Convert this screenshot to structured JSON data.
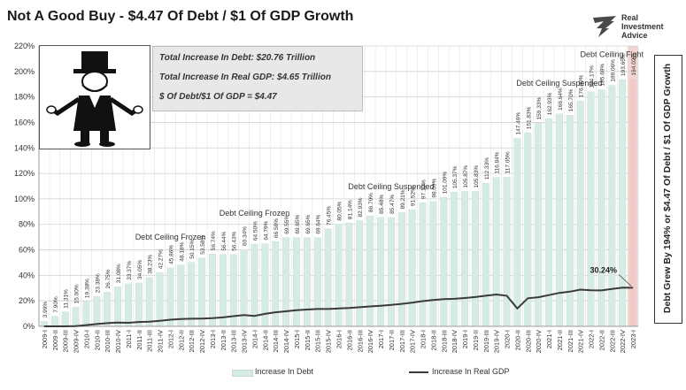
{
  "title": "Not A Good Buy - $4.47 Of Debt / $1 Of GDP Growth",
  "logo": {
    "line1": "Real",
    "line2": "Investment",
    "line3": "Advice"
  },
  "side_label": "Debt Grew By 194% or $4.47 Of Debt / $1 Of GDP Growth",
  "infobox": {
    "line1": "Total Increase In Debt:  $20.76 Trillion",
    "line2": "Total Increase In Real GDP:  $4.65 Trillion",
    "line3": "$ Of Debt/$1 Of GDP = $4.47"
  },
  "colors": {
    "bar": "#d6ebe4",
    "bar_last": "#f4c9c6",
    "line": "#3a3a3a",
    "grid": "#d0d0d0",
    "shade": "#f4d4d2"
  },
  "chart_data": {
    "type": "bar",
    "ylim": [
      0,
      220
    ],
    "yticks": [
      "0%",
      "20%",
      "40%",
      "60%",
      "80%",
      "100%",
      "120%",
      "140%",
      "160%",
      "180%",
      "200%",
      "220%"
    ],
    "categories": [
      "2009-I",
      "2009-II",
      "2009-III",
      "2009-IV",
      "2010-I",
      "2010-II",
      "2010-III",
      "2010-IV",
      "2011-I",
      "2011-II",
      "2011-III",
      "2011-IV",
      "2012-I",
      "2012-II",
      "2012-III",
      "2012-IV",
      "2013-I",
      "2013-II",
      "2013-III",
      "2013-IV",
      "2014-I",
      "2014-II",
      "2014-III",
      "2014-IV",
      "2015-I",
      "2015-II",
      "2015-III",
      "2015-IV",
      "2016-I",
      "2016-II",
      "2016-III",
      "2016-IV",
      "2017-I",
      "2017-II",
      "2017-III",
      "2017-IV",
      "2018-I",
      "2018-II",
      "2018-III",
      "2018-IV",
      "2019-I",
      "2019-II",
      "2019-III",
      "2019-IV",
      "2020-I",
      "2020-II",
      "2020-III",
      "2020-IV",
      "2021-I",
      "2021-II",
      "2021-III",
      "2021-IV",
      "2022-I",
      "2022-II",
      "2022-III",
      "2022-IV",
      "2023-I"
    ],
    "series": [
      {
        "name": "Increase In Debt",
        "type": "bar",
        "values": [
          3.99,
          7.9,
          11.31,
          15.0,
          19.38,
          23.38,
          26.75,
          31.08,
          33.37,
          34.05,
          38.23,
          42.27,
          45.86,
          48.18,
          50.15,
          53.58,
          56.74,
          56.44,
          56.43,
          60.34,
          64.5,
          64.79,
          66.58,
          69.55,
          69.65,
          69.65,
          69.64,
          76.45,
          80.05,
          81.14,
          82.93,
          86.7,
          85.48,
          85.47,
          89.21,
          91.52,
          97.1,
          98.09,
          101.09,
          105.37,
          105.87,
          105.83,
          112.33,
          116.84,
          117.05,
          147.46,
          151.83,
          159.33,
          162.93,
          166.64,
          165.7,
          176.8,
          184.17,
          185.69,
          189.06,
          193.65,
          194.02
        ],
        "labels": [
          "3.99%",
          "7.90%",
          "11.31%",
          "15.00%",
          "19.38%",
          "23.38%",
          "26.75%",
          "31.08%",
          "33.37%",
          "34.05%",
          "38.23%",
          "42.27%",
          "45.86%",
          "48.18%",
          "50.15%",
          "53.58%",
          "56.74%",
          "56.44%",
          "56.43%",
          "60.34%",
          "64.50%",
          "64.79%",
          "66.58%",
          "69.55%",
          "69.65%",
          "69.65%",
          "69.64%",
          "76.45%",
          "80.05%",
          "81.14%",
          "82.93%",
          "86.70%",
          "85.48%",
          "85.47%",
          "89.21%",
          "91.52%",
          "97.10%",
          "98.09%",
          "101.09%",
          "105.37%",
          "105.87%",
          "105.83%",
          "112.33%",
          "116.84%",
          "117.05%",
          "147.46%",
          "151.83%",
          "159.33%",
          "162.93%",
          "166.64%",
          "165.70%",
          "176.80%",
          "184.17%",
          "185.69%",
          "189.06%",
          "193.65%",
          "194.02%"
        ]
      },
      {
        "name": "Increase In Real GDP",
        "type": "line",
        "values": [
          0,
          0,
          0,
          0.2,
          1.0,
          1.8,
          2.5,
          3.0,
          2.8,
          3.4,
          3.6,
          4.4,
          5.2,
          5.7,
          6.0,
          6.1,
          6.4,
          7.0,
          8.0,
          8.8,
          8.2,
          9.8,
          11.0,
          11.8,
          12.6,
          13.2,
          13.6,
          13.6,
          14.0,
          14.4,
          15.0,
          15.6,
          16.2,
          16.8,
          17.6,
          18.6,
          19.8,
          20.6,
          21.4,
          21.6,
          22.2,
          23.0,
          24.0,
          25.0,
          24.0,
          14.0,
          22.0,
          22.8,
          24.5,
          26.2,
          27.2,
          28.8,
          28.3,
          28.2,
          29.3,
          30.4,
          30.24
        ]
      }
    ],
    "annotations": [
      {
        "text": "Debt Ceiling Frozen",
        "at": "2012-I"
      },
      {
        "text": "Debt Ceiling Frozen",
        "at": "2014-I"
      },
      {
        "text": "Debt Ceiling Suspended",
        "at": "2017-II"
      },
      {
        "text": "Debt Ceiling Suspended",
        "at": "2021-II"
      },
      {
        "text": "Debt Ceiling Fight",
        "at": "2022-III"
      }
    ],
    "last_gdp_label": "30.24%",
    "legend_position": "bottom"
  }
}
